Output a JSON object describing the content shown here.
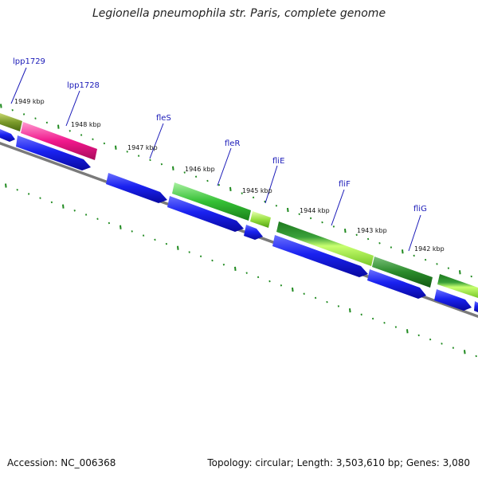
{
  "title": "Legionella pneumophila str. Paris, complete genome",
  "footer": {
    "accession": "Accession: NC_006368",
    "stats": "Topology: circular; Length: 3,503,610 bp; Genes: 3,080"
  },
  "colors": {
    "background": "#ffffff",
    "backbone": "#7a7a7a",
    "cds": "#0a10e8",
    "tick": "#1f8a1f",
    "gene_label": "#1a1ab8",
    "kbp_label": "#111111"
  },
  "genes": [
    {
      "name": "lpp1729",
      "label": "lpp1729",
      "color": "#7a9a2a"
    },
    {
      "name": "lpp1728",
      "label": "lpp1728",
      "color": "#f0188c"
    },
    {
      "name": "fleS",
      "label": "fleS",
      "color": "#0a10e8"
    },
    {
      "name": "fleR",
      "label": "fleR",
      "color": "#35c035"
    },
    {
      "name": "fliE",
      "label": "fliE",
      "color": "#70d830"
    },
    {
      "name": "fliF",
      "label": "fliF",
      "color": "#88dd40"
    },
    {
      "name": "fliG",
      "label": "fliG",
      "color": "#2a8a2a"
    }
  ],
  "kbp_labels": [
    "1949 kbp",
    "1948 kbp",
    "1947 kbp",
    "1946 kbp",
    "1945 kbp",
    "1944 kbp",
    "1943 kbp",
    "1942 kbp"
  ]
}
